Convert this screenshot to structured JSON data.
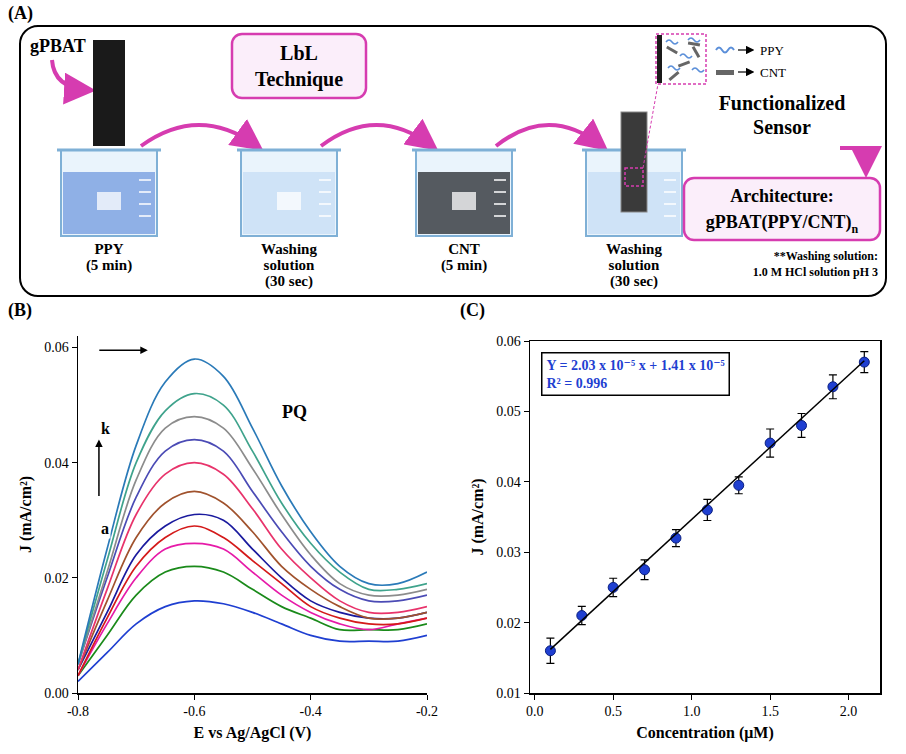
{
  "diagram": {
    "label": "(A)",
    "title": "LbL Technique",
    "substrate": "gPBAT",
    "steps": [
      {
        "label": "PPY",
        "time": "(5 min)"
      },
      {
        "label": "Washing solution",
        "time": "(30 sec)"
      },
      {
        "label": "CNT",
        "time": "(5 min)"
      },
      {
        "label": "Washing solution",
        "time": "(30 sec)"
      }
    ],
    "inset_labels": [
      "PPY",
      "CNT"
    ],
    "result": "Functionalized Sensor",
    "architecture": {
      "label": "Architecture:",
      "formula": "gPBAT(PPY/CNT)",
      "subscript": "n"
    },
    "note": [
      "**Washing solution:",
      "1.0 M HCl solution pH 3"
    ]
  },
  "chart_data": [
    {
      "panel": "(B)",
      "type": "line",
      "x_label": "E vs Ag/AgCl (V)",
      "y_label": "J (mA/cm²)",
      "x": [
        -0.8,
        -0.75,
        -0.7,
        -0.65,
        -0.6,
        -0.55,
        -0.5,
        -0.45,
        -0.4,
        -0.35,
        -0.3,
        -0.25,
        -0.2
      ],
      "series": [
        {
          "color": "#1f3fd1",
          "values": [
            0.002,
            0.007,
            0.012,
            0.015,
            0.016,
            0.0155,
            0.014,
            0.012,
            0.01,
            0.009,
            0.009,
            0.009,
            0.01
          ]
        },
        {
          "color": "#1a8a1a",
          "values": [
            0.003,
            0.01,
            0.017,
            0.021,
            0.022,
            0.021,
            0.018,
            0.015,
            0.013,
            0.011,
            0.011,
            0.011,
            0.012
          ]
        },
        {
          "color": "#e61aa8",
          "values": [
            0.003,
            0.012,
            0.02,
            0.025,
            0.026,
            0.025,
            0.021,
            0.017,
            0.014,
            0.012,
            0.011,
            0.012,
            0.013
          ]
        },
        {
          "color": "#d41a1a",
          "values": [
            0.003,
            0.013,
            0.022,
            0.027,
            0.029,
            0.027,
            0.023,
            0.019,
            0.015,
            0.013,
            0.012,
            0.012,
            0.013
          ]
        },
        {
          "color": "#1a1a9e",
          "values": [
            0.004,
            0.014,
            0.024,
            0.029,
            0.031,
            0.03,
            0.025,
            0.02,
            0.016,
            0.014,
            0.013,
            0.013,
            0.014
          ]
        },
        {
          "color": "#a0522d",
          "values": [
            0.004,
            0.016,
            0.027,
            0.033,
            0.035,
            0.033,
            0.028,
            0.022,
            0.018,
            0.015,
            0.013,
            0.013,
            0.014
          ]
        },
        {
          "color": "#e8336b",
          "values": [
            0.004,
            0.018,
            0.031,
            0.038,
            0.04,
            0.038,
            0.032,
            0.025,
            0.02,
            0.016,
            0.014,
            0.014,
            0.015
          ]
        },
        {
          "color": "#4b4bb5",
          "values": [
            0.005,
            0.02,
            0.034,
            0.042,
            0.044,
            0.042,
            0.035,
            0.028,
            0.022,
            0.018,
            0.016,
            0.016,
            0.017
          ]
        },
        {
          "color": "#8c8c8c",
          "values": [
            0.005,
            0.021,
            0.037,
            0.046,
            0.048,
            0.046,
            0.039,
            0.031,
            0.024,
            0.019,
            0.017,
            0.017,
            0.018
          ]
        },
        {
          "color": "#3fa38c",
          "values": [
            0.005,
            0.023,
            0.04,
            0.049,
            0.052,
            0.05,
            0.042,
            0.033,
            0.026,
            0.021,
            0.018,
            0.018,
            0.019
          ]
        },
        {
          "color": "#2a7ab8",
          "values": [
            0.005,
            0.025,
            0.043,
            0.054,
            0.058,
            0.055,
            0.046,
            0.036,
            0.028,
            0.022,
            0.019,
            0.019,
            0.021
          ]
        }
      ],
      "xlim": [
        -0.8,
        -0.2
      ],
      "xticks": [
        -0.8,
        -0.6,
        -0.4,
        -0.2
      ],
      "ylim": [
        0,
        0.062
      ],
      "yticks": [
        {
          "value": 0,
          "label": "0.00"
        },
        0.02,
        0.04,
        0.06
      ],
      "grid": false,
      "annotations": [
        {
          "text": "PQ"
        },
        {
          "text": "k"
        },
        {
          "text": "a"
        }
      ]
    },
    {
      "panel": "(C)",
      "type": "scatter",
      "x_label": "Concentration (μM)",
      "y_label": "J (mA/cm²)",
      "series": [
        {
          "type": "scatter",
          "marker": "circle",
          "color": "#1f3fd1",
          "x": [
            0.1,
            0.3,
            0.5,
            0.7,
            0.9,
            1.1,
            1.3,
            1.5,
            1.7,
            1.9,
            2.1
          ],
          "values": [
            0.016,
            0.021,
            0.025,
            0.0275,
            0.032,
            0.036,
            0.0395,
            0.0455,
            0.048,
            0.0535,
            0.057
          ],
          "errors": [
            0.0018,
            0.0013,
            0.0013,
            0.0014,
            0.0012,
            0.0015,
            0.0012,
            0.002,
            0.0017,
            0.0017,
            0.0015
          ]
        },
        {
          "type": "line",
          "line_style": "solid",
          "color": "#000000",
          "x": [
            0.1,
            2.1
          ],
          "values": [
            0.0162,
            0.0572
          ]
        }
      ],
      "xlim": [
        -0.03,
        2.2
      ],
      "xticks": [
        {
          "value": 0,
          "label": "0.0"
        },
        0.5,
        {
          "value": 1,
          "label": "1.0"
        },
        1.5,
        {
          "value": 2,
          "label": "2.0"
        }
      ],
      "ylim": [
        0.01,
        0.06
      ],
      "yticks": [
        0.01,
        0.02,
        0.03,
        0.04,
        0.05,
        0.06
      ],
      "grid": false,
      "annotations": [
        {
          "text": "Y = 2.03 x 10⁻⁵ x + 1.41 x 10⁻⁵"
        },
        {
          "text": "R² = 0.996"
        }
      ]
    }
  ]
}
